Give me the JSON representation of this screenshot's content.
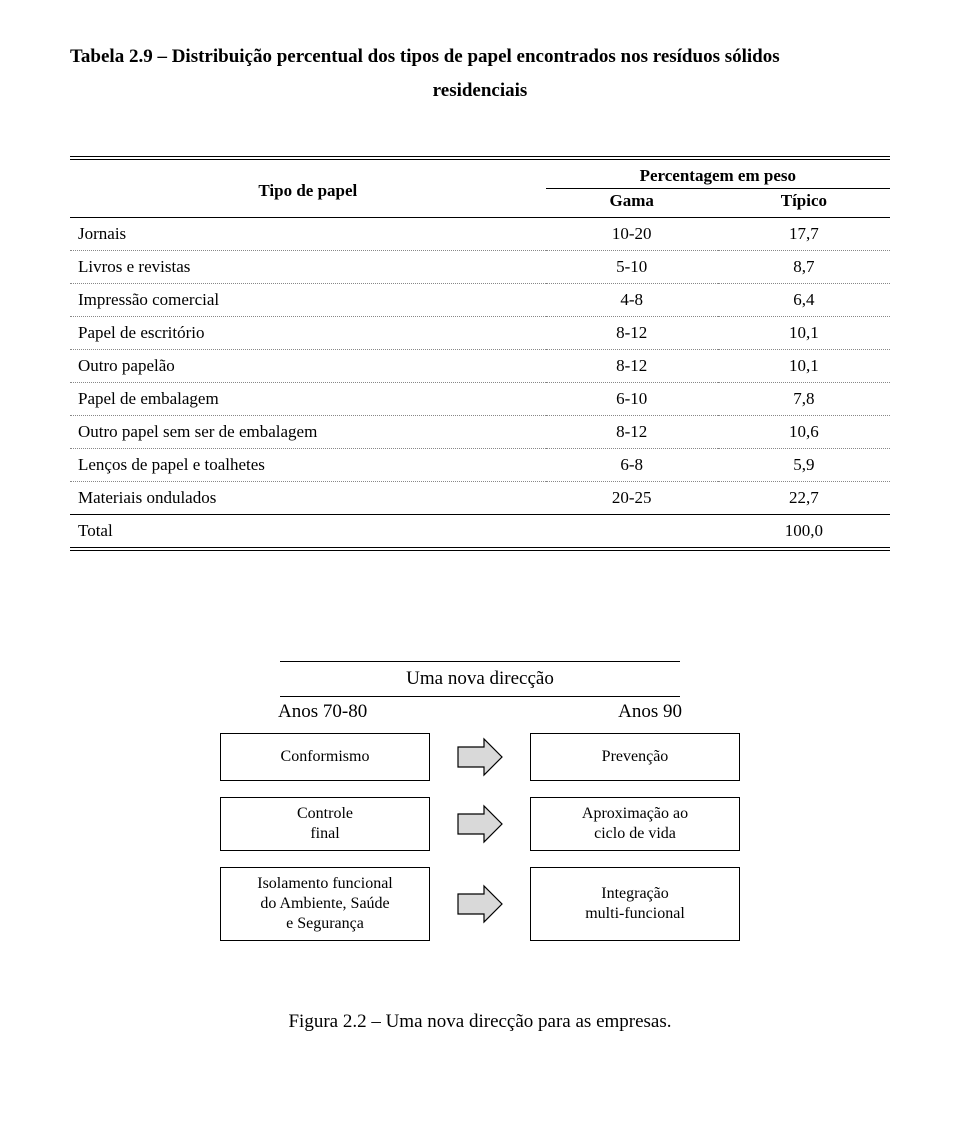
{
  "table": {
    "title_line1": "Tabela 2.9 – Distribuição percentual dos tipos de papel encontrados nos resíduos sólidos",
    "title_line2": "residenciais",
    "header": {
      "tipo": "Tipo de papel",
      "perc": "Percentagem em peso",
      "gama": "Gama",
      "tipico": "Típico"
    },
    "rows": [
      {
        "label": "Jornais",
        "gama": "10-20",
        "tipico": "17,7"
      },
      {
        "label": "Livros e revistas",
        "gama": "5-10",
        "tipico": "8,7"
      },
      {
        "label": "Impressão comercial",
        "gama": "4-8",
        "tipico": "6,4"
      },
      {
        "label": "Papel de escritório",
        "gama": "8-12",
        "tipico": "10,1"
      },
      {
        "label": "Outro papelão",
        "gama": "8-12",
        "tipico": "10,1"
      },
      {
        "label": "Papel de embalagem",
        "gama": "6-10",
        "tipico": "7,8"
      },
      {
        "label": "Outro papel sem ser de embalagem",
        "gama": "8-12",
        "tipico": "10,6"
      },
      {
        "label": "Lenços de papel e toalhetes",
        "gama": "6-8",
        "tipico": "5,9"
      },
      {
        "label": "Materiais ondulados",
        "gama": "20-25",
        "tipico": "22,7"
      }
    ],
    "total": {
      "label": "Total",
      "gama": "",
      "tipico": "100,0"
    }
  },
  "diagram": {
    "type": "flowchart",
    "header": "Uma nova direcção",
    "col_left": "Anos 70-80",
    "col_right": "Anos 90",
    "rows": [
      {
        "left": "Conformismo",
        "right": "Prevenção"
      },
      {
        "left": "Controle\nfinal",
        "right": "Aproximação ao\nciclo de vida"
      },
      {
        "left": "Isolamento funcional\ndo Ambiente, Saúde\ne Segurança",
        "right": "Integração\nmulti-funcional"
      }
    ],
    "arrow": {
      "fill": "#d9d9d9",
      "stroke": "#000000",
      "stroke_width": 1.2
    },
    "caption": "Figura 2.2 – Uma nova direcção para as empresas."
  },
  "style": {
    "font_family": "Times New Roman",
    "text_color": "#000000",
    "background": "#ffffff",
    "dotted_border_color": "#888888",
    "solid_border_color": "#000000"
  }
}
